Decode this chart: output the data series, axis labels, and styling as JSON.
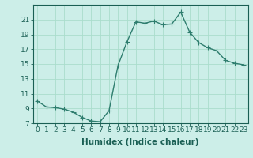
{
  "x": [
    0,
    1,
    2,
    3,
    4,
    5,
    6,
    7,
    8,
    9,
    10,
    11,
    12,
    13,
    14,
    15,
    16,
    17,
    18,
    19,
    20,
    21,
    22,
    23
  ],
  "y": [
    10.0,
    9.2,
    9.1,
    8.9,
    8.5,
    7.8,
    7.3,
    7.2,
    8.7,
    14.8,
    18.0,
    20.7,
    20.5,
    20.8,
    20.3,
    20.4,
    22.0,
    19.3,
    17.9,
    17.2,
    16.8,
    15.5,
    15.1,
    14.9
  ],
  "line_color": "#2e7d6e",
  "marker": "+",
  "marker_color": "#2e7d6e",
  "bg_color": "#cceee8",
  "grid_color": "#aaddcc",
  "xlabel": "Humidex (Indice chaleur)",
  "ylim": [
    7,
    23
  ],
  "xlim": [
    -0.5,
    23.5
  ],
  "yticks": [
    7,
    9,
    11,
    13,
    15,
    17,
    19,
    21
  ],
  "xticks": [
    0,
    1,
    2,
    3,
    4,
    5,
    6,
    7,
    8,
    9,
    10,
    11,
    12,
    13,
    14,
    15,
    16,
    17,
    18,
    19,
    20,
    21,
    22,
    23
  ],
  "xtick_labels": [
    "0",
    "1",
    "2",
    "3",
    "4",
    "5",
    "6",
    "7",
    "8",
    "9",
    "10",
    "11",
    "12",
    "13",
    "14",
    "15",
    "16",
    "17",
    "18",
    "19",
    "20",
    "21",
    "22",
    "23"
  ],
  "text_color": "#1a5f54",
  "line_width": 1.0,
  "marker_size": 4,
  "tick_fontsize": 6.5,
  "xlabel_fontsize": 7.5
}
